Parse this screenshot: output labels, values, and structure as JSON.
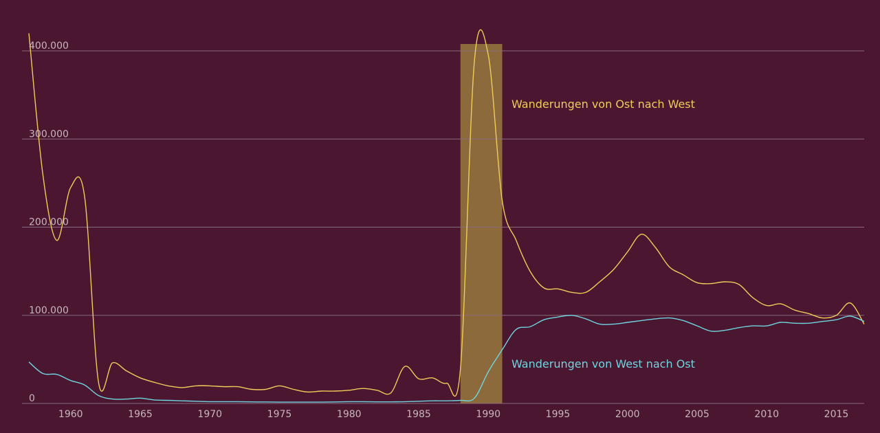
{
  "chart_data": {
    "type": "line",
    "title": "",
    "xlabel": "",
    "ylabel": "",
    "xlim": [
      1957,
      2017
    ],
    "ylim": [
      0,
      400000
    ],
    "x_ticks": [
      1960,
      1965,
      1970,
      1975,
      1980,
      1985,
      1990,
      1995,
      2000,
      2005,
      2010,
      2015
    ],
    "x_tick_labels": [
      "1960",
      "1965",
      "1970",
      "1975",
      "1980",
      "1985",
      "1990",
      "1995",
      "2000",
      "2005",
      "2010",
      "2015"
    ],
    "y_ticks": [
      0,
      100000,
      200000,
      300000,
      400000
    ],
    "y_tick_labels": [
      "0",
      "100.000",
      "200.000",
      "300.000",
      "400.000"
    ],
    "grid": true,
    "highlight_range": {
      "from": 1988,
      "to": 1991,
      "color": "#8c6a3c"
    },
    "series": [
      {
        "name": "Wanderungen von Ost nach West",
        "color": "#f0cd5a",
        "x": [
          1957,
          1958,
          1959,
          1960,
          1961,
          1962,
          1963,
          1964,
          1965,
          1966,
          1967,
          1968,
          1969,
          1970,
          1971,
          1972,
          1973,
          1974,
          1975,
          1976,
          1977,
          1978,
          1979,
          1980,
          1981,
          1982,
          1983,
          1984,
          1985,
          1986,
          1987,
          1988,
          1989,
          1990,
          1991,
          1992,
          1993,
          1994,
          1995,
          1996,
          1997,
          1998,
          1999,
          2000,
          2001,
          2002,
          2003,
          2004,
          2005,
          2006,
          2007,
          2008,
          2009,
          2010,
          2011,
          2012,
          2013,
          2014,
          2015,
          2016,
          2017
        ],
        "values": [
          420000,
          260000,
          185000,
          245000,
          235000,
          24000,
          46000,
          37000,
          29000,
          24000,
          20000,
          18000,
          20000,
          20000,
          19000,
          19000,
          16000,
          16000,
          20000,
          16000,
          13000,
          14000,
          14000,
          15000,
          17000,
          15000,
          12000,
          42000,
          28000,
          29000,
          23000,
          40000,
          388000,
          395000,
          230000,
          185000,
          150000,
          131000,
          130000,
          126000,
          126000,
          138000,
          152000,
          172000,
          192000,
          177000,
          155000,
          146000,
          137000,
          136000,
          138000,
          135000,
          120000,
          111000,
          113000,
          106000,
          102000,
          97000,
          100000,
          114000,
          90000
        ]
      },
      {
        "name": "Wanderungen von West nach Ost",
        "color": "#6fd6e0",
        "x": [
          1957,
          1958,
          1959,
          1960,
          1961,
          1962,
          1963,
          1964,
          1965,
          1966,
          1967,
          1968,
          1969,
          1970,
          1971,
          1972,
          1973,
          1974,
          1975,
          1976,
          1977,
          1978,
          1979,
          1980,
          1981,
          1982,
          1983,
          1984,
          1985,
          1986,
          1987,
          1988,
          1989,
          1990,
          1991,
          1992,
          1993,
          1994,
          1995,
          1996,
          1997,
          1998,
          1999,
          2000,
          2001,
          2002,
          2003,
          2004,
          2005,
          2006,
          2007,
          2008,
          2009,
          2010,
          2011,
          2012,
          2013,
          2014,
          2015,
          2016,
          2017
        ],
        "values": [
          47000,
          34000,
          33000,
          26000,
          21000,
          9000,
          5000,
          5000,
          6000,
          4000,
          3500,
          3000,
          2500,
          2000,
          2000,
          2000,
          1800,
          1700,
          1500,
          1500,
          1500,
          1500,
          1700,
          2000,
          2000,
          1800,
          1800,
          2000,
          2500,
          3000,
          3000,
          3500,
          6000,
          36000,
          61000,
          84000,
          87000,
          95000,
          98000,
          100000,
          96000,
          90000,
          90000,
          92000,
          94000,
          96000,
          97000,
          94000,
          88000,
          82000,
          83000,
          86000,
          88000,
          88000,
          92000,
          91000,
          91000,
          93000,
          95000,
          99000,
          93000
        ]
      }
    ],
    "annotations": [
      {
        "text": "Wanderungen von Ost nach West",
        "series": 0,
        "color": "#f0cd5a"
      },
      {
        "text": "Wanderungen von West nach Ost",
        "series": 1,
        "color": "#6fd6e0"
      }
    ]
  }
}
